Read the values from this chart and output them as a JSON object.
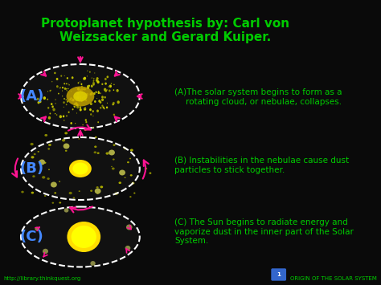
{
  "background_color": "#0a0a0a",
  "title": "Protoplanet hypothesis by: Carl von\nWeizsacker and Gerard Kuiper.",
  "title_color": "#00cc00",
  "title_fontsize": 11,
  "label_A": "(A)",
  "label_B": "(B)",
  "label_C": "(C)",
  "label_color": "#4488ff",
  "label_fontsize": 13,
  "text_color": "#00cc00",
  "text_A": "(A)The solar system begins to form as a\n    rotating cloud, or nebulae, collapses.",
  "text_B": "(B) Instabilities in the nebulae cause dust\nparticles to stick together.",
  "text_C": "(C) The Sun begins to radiate energy and\nvaporize dust in the inner part of the Solar\nSystem.",
  "footer_left": "http://library.thinkquest.org",
  "footer_right": "ORIGIN OF THE SOLAR SYSTEM",
  "footer_color": "#00cc00",
  "footer_fontsize": 5,
  "arrow_color": "#ff1493",
  "ellipse_color": "#ffffff",
  "nebula_color_A": "#ccaa00",
  "sun_color_B": "#ffff00",
  "sun_color_C": "#ffff00",
  "dust_color": "#8a8a00"
}
